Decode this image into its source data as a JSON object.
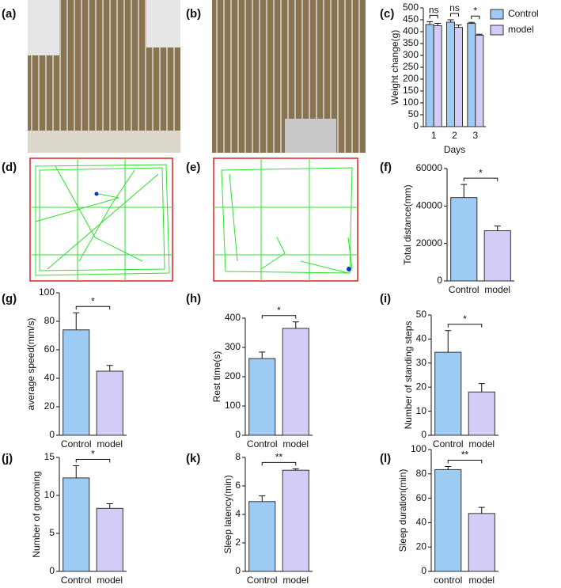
{
  "photo_panels": [
    "(a)",
    "(b)",
    "(d)",
    "(e)"
  ],
  "chart_data": [
    {
      "type": "bar",
      "panel": "(c)",
      "ylabel": "Weight change(g)",
      "xlabel": "Days",
      "categories": [
        "1",
        "2",
        "3"
      ],
      "series": [
        {
          "name": "Control",
          "color": "#9ecbf4",
          "values": [
            430,
            440,
            435
          ],
          "errors": [
            12,
            10,
            4
          ]
        },
        {
          "name": "model",
          "color": "#d1cdf7",
          "values": [
            425,
            418,
            385
          ],
          "errors": [
            10,
            10,
            4
          ]
        }
      ],
      "significance": [
        "ns",
        "ns",
        "*"
      ],
      "legend": "right",
      "ylim": [
        0,
        500
      ],
      "yticks": [
        0,
        50,
        100,
        150,
        200,
        250,
        300,
        350,
        400,
        450,
        500
      ]
    },
    {
      "type": "bar",
      "panel": "(f)",
      "ylabel": "Total distance(mm)",
      "categories": [
        "Control",
        "model"
      ],
      "values": [
        44500,
        26800
      ],
      "errors": [
        7000,
        2500
      ],
      "colors": [
        "#9ecbf4",
        "#d1cdf7"
      ],
      "significance": "*",
      "ylim": [
        0,
        60000
      ],
      "yticks": [
        0,
        20000,
        40000,
        60000
      ]
    },
    {
      "type": "bar",
      "panel": "(g)",
      "ylabel": "average speed(mm/s)",
      "categories": [
        "Control",
        "model"
      ],
      "values": [
        74,
        45
      ],
      "errors": [
        12,
        4
      ],
      "colors": [
        "#9ecbf4",
        "#d1cdf7"
      ],
      "significance": "*",
      "ylim": [
        0,
        100
      ],
      "yticks": [
        0,
        20,
        40,
        60,
        80,
        100
      ]
    },
    {
      "type": "bar",
      "panel": "(h)",
      "ylabel": "Rest time(s)",
      "categories": [
        "Control",
        "model"
      ],
      "values": [
        262,
        365
      ],
      "errors": [
        22,
        22
      ],
      "colors": [
        "#9ecbf4",
        "#d1cdf7"
      ],
      "significance": "*",
      "ylim": [
        0,
        400
      ],
      "yticks": [
        0,
        100,
        200,
        300,
        400
      ]
    },
    {
      "type": "bar",
      "panel": "(i)",
      "ylabel": "Number of standing steps",
      "categories": [
        "Control",
        "model"
      ],
      "values": [
        34.5,
        18
      ],
      "errors": [
        9,
        3.5
      ],
      "colors": [
        "#9ecbf4",
        "#d1cdf7"
      ],
      "significance": "*",
      "ylim": [
        0,
        50
      ],
      "yticks": [
        0,
        10,
        20,
        30,
        40,
        50
      ]
    },
    {
      "type": "bar",
      "panel": "(j)",
      "ylabel": "Number of grooming",
      "categories": [
        "Control",
        "model"
      ],
      "values": [
        12.3,
        8.3
      ],
      "errors": [
        1.6,
        0.6
      ],
      "colors": [
        "#9ecbf4",
        "#d1cdf7"
      ],
      "significance": "*",
      "ylim": [
        0,
        15
      ],
      "yticks": [
        0,
        5,
        10,
        15
      ]
    },
    {
      "type": "bar",
      "panel": "(k)",
      "ylabel": "Sleep latency(min)",
      "categories": [
        "Control",
        "model"
      ],
      "values": [
        4.9,
        7.1
      ],
      "errors": [
        0.4,
        0.1
      ],
      "colors": [
        "#9ecbf4",
        "#d1cdf7"
      ],
      "significance": "**",
      "ylim": [
        0,
        8
      ],
      "yticks": [
        0,
        2,
        4,
        6,
        8
      ]
    },
    {
      "type": "bar",
      "panel": "(l)",
      "ylabel": "Sleep duration(min)",
      "categories": [
        "control",
        "model"
      ],
      "values": [
        83.5,
        47.5
      ],
      "errors": [
        2.5,
        5
      ],
      "colors": [
        "#9ecbf4",
        "#d1cdf7"
      ],
      "significance": "**",
      "ylim": [
        0,
        100
      ],
      "yticks": [
        0,
        20,
        40,
        60,
        80,
        100
      ]
    }
  ]
}
